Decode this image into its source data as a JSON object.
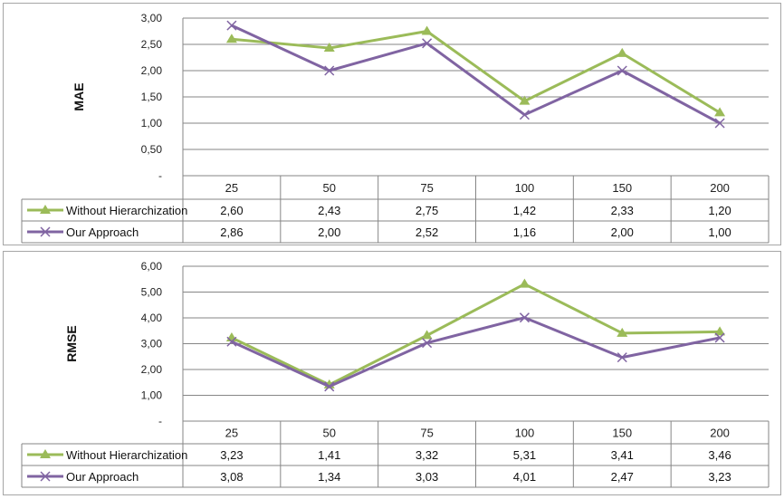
{
  "chart_data": [
    {
      "type": "line",
      "title": "",
      "ylabel": "MAE",
      "xlabel": "",
      "categories": [
        "25",
        "50",
        "75",
        "100",
        "150",
        "200"
      ],
      "ylim": [
        0,
        3
      ],
      "yticks": [
        "-",
        "0,50",
        "1,00",
        "1,50",
        "2,00",
        "2,50",
        "3,00"
      ],
      "ytick_values": [
        0,
        0.5,
        1,
        1.5,
        2,
        2.5,
        3
      ],
      "grid": true,
      "legend": "data-table",
      "series": [
        {
          "name": "Without Hierarchization",
          "marker": "triangle",
          "color": "#9bbb59",
          "values": [
            2.6,
            2.43,
            2.75,
            1.42,
            2.33,
            1.2
          ],
          "labels": [
            "2,60",
            "2,43",
            "2,75",
            "1,42",
            "2,33",
            "1,20"
          ]
        },
        {
          "name": "Our Approach",
          "marker": "x",
          "color": "#8064a2",
          "values": [
            2.86,
            2.0,
            2.52,
            1.16,
            2.0,
            1.0
          ],
          "labels": [
            "2,86",
            "2,00",
            "2,52",
            "1,16",
            "2,00",
            "1,00"
          ]
        }
      ]
    },
    {
      "type": "line",
      "title": "",
      "ylabel": "RMSE",
      "xlabel": "",
      "categories": [
        "25",
        "50",
        "75",
        "100",
        "150",
        "200"
      ],
      "ylim": [
        0,
        6
      ],
      "yticks": [
        "-",
        "1,00",
        "2,00",
        "3,00",
        "4,00",
        "5,00",
        "6,00"
      ],
      "ytick_values": [
        0,
        1,
        2,
        3,
        4,
        5,
        6
      ],
      "grid": true,
      "legend": "data-table",
      "series": [
        {
          "name": "Without Hierarchization",
          "marker": "triangle",
          "color": "#9bbb59",
          "values": [
            3.23,
            1.41,
            3.32,
            5.31,
            3.41,
            3.46
          ],
          "labels": [
            "3,23",
            "1,41",
            "3,32",
            "5,31",
            "3,41",
            "3,46"
          ]
        },
        {
          "name": "Our Approach",
          "marker": "x",
          "color": "#8064a2",
          "values": [
            3.08,
            1.34,
            3.03,
            4.01,
            2.47,
            3.23
          ],
          "labels": [
            "3,08",
            "1,34",
            "3,03",
            "4,01",
            "2,47",
            "3,23"
          ]
        }
      ]
    }
  ]
}
